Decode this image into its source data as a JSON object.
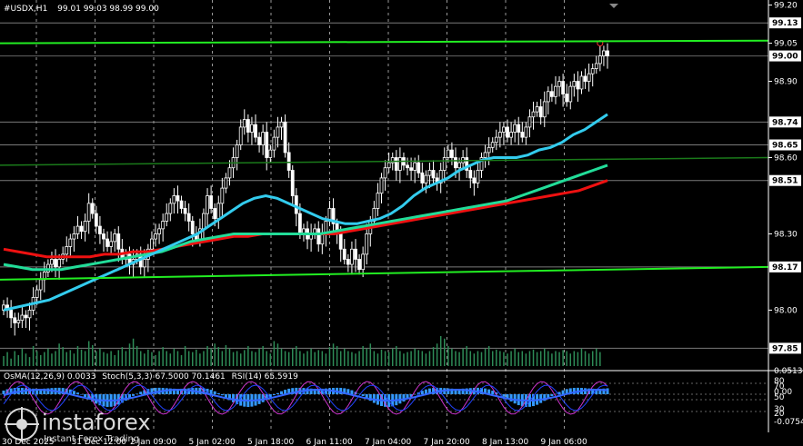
{
  "header": {
    "symbol": "#USDX,H1",
    "ohlc": "99.01 99.03 98.99 99.00"
  },
  "indicator_header": {
    "osma": "OsMA(12,26,9) 0.0033",
    "stoch": "Stoch(5,3,3) 67.5000 70.1461",
    "rsi": "RSI(14) 65.5919"
  },
  "watermark": {
    "brand": "instaforex",
    "tagline": "Instant Forex Trading"
  },
  "colors": {
    "background": "#000000",
    "grid": "#ffffff",
    "candle": "#ffffff",
    "ema_fast": "#33ccee",
    "ema_mid": "#22dd99",
    "ema_slow": "#ee1111",
    "trend_line": "#22ee22",
    "level_line": "#888888",
    "osma": "#3399ff",
    "stoch_main": "#2244ff",
    "stoch_signal": "#cc33cc",
    "rsi": "#3366ff",
    "price_label_bg": "#ffffff",
    "current_price_bg": "#ffffff"
  },
  "chart_data": {
    "type": "candlestick",
    "symbol": "#USDX",
    "timeframe": "H1",
    "ylim": [
      97.78,
      99.22
    ],
    "y_ticks": [
      98.0,
      98.3,
      98.6,
      98.9,
      99.05,
      99.2
    ],
    "y_tick_labels": [
      "98.00",
      "98.30",
      "98.60",
      "98.90",
      "99.05",
      "99.20"
    ],
    "x_tick_labels": [
      "30 Dec 2025",
      "31 Dec 12:00",
      "2 Jan 09:00",
      "5 Jan 02:00",
      "5 Jan 18:00",
      "6 Jan 11:00",
      "7 Jan 04:00",
      "7 Jan 20:00",
      "8 Jan 13:00",
      "9 Jan 06:00"
    ],
    "levels": [
      {
        "value": 99.13,
        "label": "99.13"
      },
      {
        "value": 98.74,
        "label": "98.74"
      },
      {
        "value": 98.65,
        "label": "98.65"
      },
      {
        "value": 98.51,
        "label": "98.51"
      },
      {
        "value": 98.17,
        "label": "98.17"
      },
      {
        "value": 97.85,
        "label": "97.85"
      }
    ],
    "current_price": {
      "value": 99.0,
      "label": "99.00"
    },
    "closes": [
      98.02,
      98.0,
      97.97,
      97.95,
      97.96,
      97.98,
      97.97,
      98.0,
      98.05,
      98.08,
      98.12,
      98.15,
      98.18,
      98.2,
      98.17,
      98.2,
      98.22,
      98.25,
      98.28,
      98.3,
      98.33,
      98.31,
      98.35,
      98.42,
      98.38,
      98.33,
      98.3,
      98.28,
      98.25,
      98.27,
      98.3,
      98.24,
      98.2,
      98.22,
      98.18,
      98.2,
      98.22,
      98.17,
      98.2,
      98.24,
      98.28,
      98.3,
      98.32,
      98.35,
      98.38,
      98.42,
      98.45,
      98.43,
      98.4,
      98.38,
      98.35,
      98.3,
      98.28,
      98.32,
      98.38,
      98.45,
      98.4,
      98.36,
      98.42,
      98.48,
      98.52,
      98.56,
      98.6,
      98.65,
      98.72,
      98.75,
      98.7,
      98.73,
      98.68,
      98.65,
      98.7,
      98.6,
      98.63,
      98.68,
      98.72,
      98.74,
      98.62,
      98.55,
      98.45,
      98.38,
      98.3,
      98.32,
      98.28,
      98.3,
      98.32,
      98.26,
      98.3,
      98.35,
      98.4,
      98.34,
      98.3,
      98.24,
      98.2,
      98.18,
      98.24,
      98.2,
      98.16,
      98.22,
      98.3,
      98.35,
      98.4,
      98.46,
      98.52,
      98.56,
      98.58,
      98.6,
      98.55,
      98.6,
      98.57,
      98.56,
      98.55,
      98.58,
      98.54,
      98.5,
      98.53,
      98.55,
      98.52,
      98.5,
      98.55,
      98.6,
      98.63,
      98.6,
      98.56,
      98.58,
      98.6,
      98.55,
      98.52,
      98.5,
      98.55,
      98.6,
      98.62,
      98.64,
      98.66,
      98.68,
      98.7,
      98.72,
      98.68,
      98.7,
      98.73,
      98.7,
      98.68,
      98.72,
      98.76,
      98.78,
      98.8,
      98.76,
      98.82,
      98.86,
      98.84,
      98.88,
      98.9,
      98.85,
      98.82,
      98.88,
      98.9,
      98.87,
      98.92,
      98.9,
      98.93,
      98.95,
      98.97,
      99.0,
      99.02,
      99.0
    ],
    "volumes": [
      0.2,
      0.28,
      0.15,
      0.3,
      0.22,
      0.35,
      0.25,
      0.18,
      0.4,
      0.3,
      0.22,
      0.28,
      0.35,
      0.25,
      0.3,
      0.45,
      0.38,
      0.28,
      0.32,
      0.25,
      0.4,
      0.33,
      0.3,
      0.5,
      0.42,
      0.3,
      0.35,
      0.28,
      0.25,
      0.3,
      0.22,
      0.32,
      0.38,
      0.3,
      0.45,
      0.55,
      0.4,
      0.3,
      0.25,
      0.33,
      0.28,
      0.22,
      0.3,
      0.38,
      0.3,
      0.25,
      0.35,
      0.3,
      0.22,
      0.4,
      0.3,
      0.28,
      0.33,
      0.25,
      0.3,
      0.4,
      0.35,
      0.45,
      0.38,
      0.3,
      0.42,
      0.35,
      0.28,
      0.3,
      0.25,
      0.32,
      0.4,
      0.3,
      0.28,
      0.35,
      0.4,
      0.3,
      0.25,
      0.5,
      0.45,
      0.35,
      0.3,
      0.28,
      0.35,
      0.4,
      0.3,
      0.25,
      0.3,
      0.35,
      0.28,
      0.32,
      0.3,
      0.25,
      0.38,
      0.45,
      0.4,
      0.3,
      0.35,
      0.3,
      0.28,
      0.25,
      0.3,
      0.4,
      0.35,
      0.45,
      0.3,
      0.25,
      0.33,
      0.3,
      0.28,
      0.35,
      0.4,
      0.3,
      0.25,
      0.28,
      0.3,
      0.35,
      0.32,
      0.3,
      0.25,
      0.3,
      0.38,
      0.45,
      0.6,
      0.55,
      0.4,
      0.35,
      0.3,
      0.28,
      0.35,
      0.4,
      0.3,
      0.25,
      0.3,
      0.28,
      0.35,
      0.4,
      0.3,
      0.33,
      0.3,
      0.28,
      0.25,
      0.3,
      0.35,
      0.28,
      0.3,
      0.25,
      0.3,
      0.33,
      0.28,
      0.3,
      0.35,
      0.3,
      0.25,
      0.3,
      0.28,
      0.32,
      0.3,
      0.25,
      0.3,
      0.28,
      0.35,
      0.3,
      0.25,
      0.3,
      0.35,
      0.28
    ],
    "ema_fast": [
      98.0,
      98.01,
      98.02,
      98.03,
      98.04,
      98.06,
      98.08,
      98.1,
      98.12,
      98.14,
      98.16,
      98.18,
      98.2,
      98.22,
      98.24,
      98.26,
      98.28,
      98.3,
      98.33,
      98.36,
      98.39,
      98.42,
      98.44,
      98.45,
      98.44,
      98.42,
      98.4,
      98.38,
      98.36,
      98.35,
      98.34,
      98.34,
      98.35,
      98.36,
      98.38,
      98.41,
      98.45,
      98.48,
      98.5,
      98.52,
      98.55,
      98.57,
      98.59,
      98.6,
      98.6,
      98.6,
      98.61,
      98.63,
      98.64,
      98.66,
      98.69,
      98.71,
      98.74,
      98.77
    ],
    "ema_mid": [
      98.18,
      98.17,
      98.16,
      98.16,
      98.16,
      98.17,
      98.18,
      98.19,
      98.2,
      98.21,
      98.22,
      98.23,
      98.25,
      98.27,
      98.28,
      98.29,
      98.3,
      98.3,
      98.3,
      98.3,
      98.3,
      98.3,
      98.3,
      98.31,
      98.32,
      98.33,
      98.34,
      98.35,
      98.36,
      98.37,
      98.38,
      98.39,
      98.4,
      98.41,
      98.42,
      98.43,
      98.45,
      98.47,
      98.49,
      98.51,
      98.53,
      98.55,
      98.57
    ],
    "ema_slow": [
      98.24,
      98.23,
      98.22,
      98.21,
      98.21,
      98.21,
      98.21,
      98.22,
      98.22,
      98.23,
      98.23,
      98.24,
      98.25,
      98.26,
      98.27,
      98.28,
      98.29,
      98.29,
      98.3,
      98.3,
      98.3,
      98.3,
      98.3,
      98.3,
      98.31,
      98.32,
      98.33,
      98.34,
      98.35,
      98.36,
      98.37,
      98.38,
      98.39,
      98.4,
      98.41,
      98.42,
      98.43,
      98.44,
      98.45,
      98.46,
      98.47,
      98.49,
      98.51
    ],
    "trend_lines": [
      {
        "from": [
          0,
          99.05
        ],
        "to": [
          1,
          99.06
        ],
        "color": "green"
      },
      {
        "from": [
          0,
          98.12
        ],
        "to": [
          1,
          98.17
        ],
        "color": "green"
      },
      {
        "from": [
          0,
          98.57
        ],
        "to": [
          1,
          98.6
        ],
        "color": "darkgreen"
      }
    ]
  }
}
